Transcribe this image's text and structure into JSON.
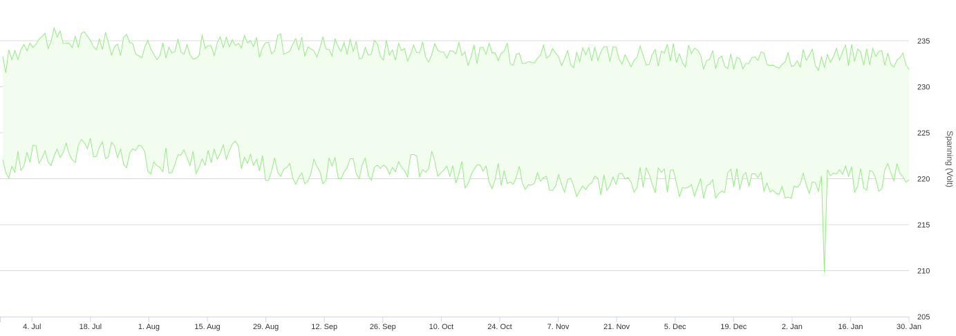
{
  "chart_data": {
    "type": "area",
    "title": "",
    "xlabel": "",
    "ylabel": "Spanning (Volt)",
    "ylim": [
      205,
      235
    ],
    "y_ticks": [
      "205",
      "210",
      "215",
      "220",
      "225",
      "230",
      "235"
    ],
    "x_range": [
      "2021-06-27",
      "2022-01-30"
    ],
    "x_ticks": [
      {
        "date": "2021-07-04",
        "label": "4. Jul"
      },
      {
        "date": "2021-07-18",
        "label": "18. Jul"
      },
      {
        "date": "2021-08-01",
        "label": "1. Aug"
      },
      {
        "date": "2021-08-15",
        "label": "15. Aug"
      },
      {
        "date": "2021-08-29",
        "label": "29. Aug"
      },
      {
        "date": "2021-09-12",
        "label": "12. Sep"
      },
      {
        "date": "2021-09-26",
        "label": "26. Sep"
      },
      {
        "date": "2021-10-10",
        "label": "10. Oct"
      },
      {
        "date": "2021-10-24",
        "label": "24. Oct"
      },
      {
        "date": "2021-11-07",
        "label": "7. Nov"
      },
      {
        "date": "2021-11-21",
        "label": "21. Nov"
      },
      {
        "date": "2021-12-05",
        "label": "5. Dec"
      },
      {
        "date": "2021-12-19",
        "label": "19. Dec"
      },
      {
        "date": "2022-01-02",
        "label": "2. Jan"
      },
      {
        "date": "2022-01-16",
        "label": "16. Jan"
      },
      {
        "date": "2022-01-30",
        "label": "30. Jan"
      }
    ],
    "grid": true,
    "legend": "none",
    "colors": {
      "line": "#90ed7d",
      "fill": "#f2fdf0",
      "grid": "#d8d8d8",
      "axis": "#ccd6eb"
    },
    "series": [
      {
        "x": [
          "2021-06-27",
          "2021-07-04",
          "2021-07-11",
          "2021-07-18",
          "2021-07-25",
          "2021-08-01",
          "2021-08-08",
          "2021-08-15",
          "2021-08-22",
          "2021-08-29",
          "2021-09-05",
          "2021-09-12",
          "2021-09-19",
          "2021-09-26",
          "2021-10-03",
          "2021-10-10",
          "2021-10-17",
          "2021-10-24",
          "2021-10-31",
          "2021-11-07",
          "2021-11-14",
          "2021-11-21",
          "2021-11-28",
          "2021-12-05",
          "2021-12-12",
          "2021-12-19",
          "2021-12-26",
          "2022-01-02",
          "2022-01-09",
          "2022-01-16",
          "2022-01-23",
          "2022-01-30"
        ],
        "low": [
          220.8,
          222.5,
          223.0,
          223.0,
          222.5,
          222.0,
          222.0,
          222.0,
          222.8,
          221.0,
          220.5,
          220.8,
          221.0,
          221.0,
          221.5,
          221.8,
          220.0,
          220.5,
          220.0,
          219.5,
          219.5,
          219.8,
          220.0,
          219.5,
          218.5,
          219.8,
          220.0,
          219.0,
          220.0,
          220.0,
          220.0,
          221.0
        ],
        "high": [
          232.3,
          235.5,
          235.0,
          235.0,
          234.5,
          234.3,
          234.0,
          234.5,
          234.5,
          234.5,
          234.5,
          234.5,
          234.3,
          234.0,
          234.0,
          234.0,
          233.5,
          233.5,
          233.8,
          233.5,
          233.0,
          233.5,
          233.2,
          233.5,
          233.0,
          232.5,
          232.5,
          233.5,
          233.0,
          233.5,
          233.5,
          233.0
        ]
      }
    ]
  }
}
